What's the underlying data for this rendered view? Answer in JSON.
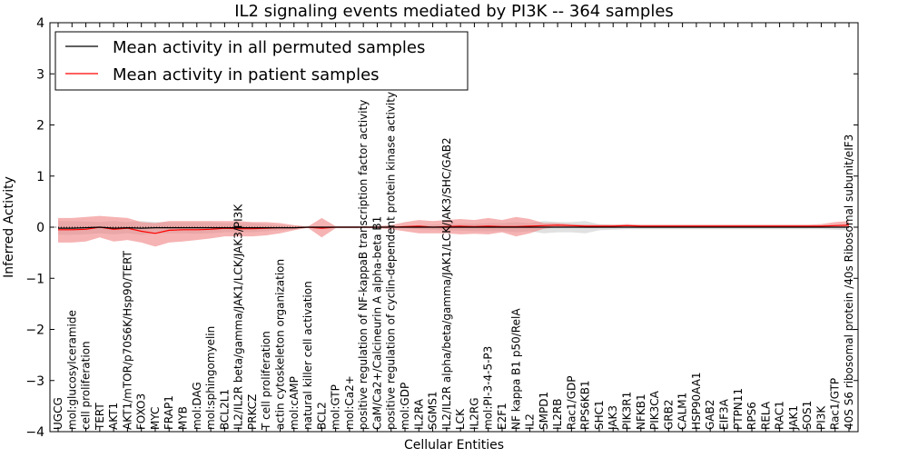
{
  "chart_data": {
    "type": "line",
    "title": "IL2 signaling events mediated by PI3K -- 364 samples",
    "xlabel": "Cellular Entities",
    "ylabel": "Inferred Activity",
    "ylim": [
      -4,
      4
    ],
    "yticks": [
      -4,
      -3,
      -2,
      -1,
      0,
      1,
      2,
      3,
      4
    ],
    "ytick_labels": [
      "−4",
      "−3",
      "−2",
      "−1",
      "0",
      "1",
      "2",
      "3",
      "4"
    ],
    "legend_position": "top-left",
    "categories": [
      "UGCG",
      "mol:glucosylceramide",
      "cell proliferation",
      "TERT",
      "AKT1",
      "AKT1/mTOR/p70S6K/Hsp90/TERT",
      "FOXO3",
      "MYC",
      "FRAP1",
      "MYB",
      "mol:DAG",
      "mol:sphingomyelin",
      "BCL2L1",
      "IL2/IL2R beta/gamma/JAK1/LCK/JAK3/PI3K",
      "PRKCZ",
      "T cell proliferation",
      "actin cytoskeleton organization",
      "mol:cAMP",
      "natural killer cell activation",
      "BCL2",
      "mol:GTP",
      "mol:Ca2+",
      "positive regulation of NF-kappaB transcription factor activity",
      "CaM/Ca2+/Calcineurin A alpha-beta B1",
      "positive regulation of cyclin-dependent protein kinase activity",
      "mol:GDP",
      "IL2RA",
      "SGMS1",
      "IL2/IL2R alpha/beta/gamma/JAK1/LCK/JAK3/SHC/GAB2",
      "LCK",
      "IL2RG",
      "mol:PI-3-4-5-P3",
      "E2F1",
      "NF kappa B1 p50/RelA",
      "IL2",
      "SMPD1",
      "IL2RB",
      "Rac1/GDP",
      "RPS6KB1",
      "SHC1",
      "JAK3",
      "PIK3R1",
      "NFKB1",
      "PIK3CA",
      "GRB2",
      "CALM1",
      "HSP90AA1",
      "GAB2",
      "EIF3A",
      "PTPN11",
      "RPS6",
      "RELA",
      "RAC1",
      "JAK1",
      "SOS1",
      "PI3K",
      "Rac1/GTP",
      "40S S6 ribosomal protein /40s Ribosomal subunit/eIF3"
    ],
    "series": [
      {
        "name": "Mean activity in all permuted samples",
        "color": "#000000",
        "values": [
          -0.02,
          -0.02,
          -0.01,
          0.0,
          -0.02,
          -0.01,
          -0.02,
          -0.01,
          -0.01,
          -0.01,
          -0.01,
          -0.01,
          -0.01,
          -0.01,
          -0.01,
          -0.01,
          -0.01,
          -0.01,
          0.0,
          0.0,
          0.0,
          0.0,
          0.0,
          0.0,
          0.0,
          0.0,
          0.0,
          0.0,
          0.0,
          0.0,
          0.0,
          0.0,
          0.0,
          0.0,
          0.0,
          0.0,
          0.0,
          0.0,
          0.0,
          0.0,
          0.0,
          0.0,
          0.0,
          0.0,
          0.0,
          0.0,
          0.0,
          0.0,
          0.0,
          0.0,
          0.0,
          0.0,
          0.0,
          0.0,
          0.0,
          0.0,
          0.0,
          0.0
        ],
        "band_lower": [
          -0.15,
          -0.15,
          -0.14,
          -0.12,
          -0.14,
          -0.12,
          -0.15,
          -0.13,
          -0.12,
          -0.12,
          -0.13,
          -0.12,
          -0.1,
          -0.1,
          -0.1,
          -0.08,
          -0.06,
          -0.04,
          -0.01,
          -0.02,
          -0.01,
          -0.01,
          -0.01,
          -0.01,
          -0.01,
          -0.02,
          -0.04,
          -0.05,
          -0.06,
          -0.07,
          -0.08,
          -0.08,
          -0.08,
          -0.1,
          -0.08,
          -0.12,
          -0.1,
          -0.1,
          -0.12,
          -0.06,
          -0.05,
          -0.04,
          -0.04,
          -0.04,
          -0.04,
          -0.04,
          -0.04,
          -0.04,
          -0.04,
          -0.04,
          -0.04,
          -0.04,
          -0.04,
          -0.04,
          -0.04,
          -0.04,
          -0.05,
          -0.06
        ],
        "band_upper": [
          0.12,
          0.12,
          0.11,
          0.1,
          0.12,
          0.1,
          0.12,
          0.1,
          0.1,
          0.1,
          0.1,
          0.1,
          0.08,
          0.08,
          0.08,
          0.06,
          0.04,
          0.03,
          0.01,
          0.02,
          0.01,
          0.01,
          0.01,
          0.01,
          0.01,
          0.02,
          0.04,
          0.05,
          0.06,
          0.07,
          0.07,
          0.08,
          0.08,
          0.1,
          0.08,
          0.12,
          0.1,
          0.1,
          0.12,
          0.06,
          0.05,
          0.04,
          0.04,
          0.04,
          0.04,
          0.04,
          0.04,
          0.04,
          0.04,
          0.04,
          0.04,
          0.04,
          0.04,
          0.04,
          0.04,
          0.04,
          0.05,
          0.06
        ]
      },
      {
        "name": "Mean activity in patient samples",
        "color": "#ff0000",
        "band_color": "#f08080",
        "values": [
          -0.05,
          -0.05,
          -0.04,
          0.0,
          -0.04,
          -0.02,
          -0.08,
          -0.12,
          -0.06,
          -0.05,
          -0.05,
          -0.04,
          -0.02,
          -0.03,
          -0.03,
          -0.02,
          -0.01,
          -0.01,
          0.0,
          -0.02,
          0.0,
          0.0,
          0.0,
          0.0,
          0.0,
          0.01,
          0.02,
          0.0,
          0.01,
          0.02,
          0.01,
          0.02,
          0.01,
          0.01,
          0.02,
          0.03,
          0.04,
          0.03,
          0.02,
          0.02,
          0.02,
          0.03,
          0.02,
          0.02,
          0.02,
          0.02,
          0.02,
          0.02,
          0.02,
          0.02,
          0.02,
          0.02,
          0.02,
          0.02,
          0.02,
          0.02,
          0.03,
          0.04
        ],
        "band_lower": [
          -0.3,
          -0.3,
          -0.28,
          -0.2,
          -0.28,
          -0.25,
          -0.3,
          -0.38,
          -0.3,
          -0.28,
          -0.25,
          -0.22,
          -0.18,
          -0.18,
          -0.18,
          -0.16,
          -0.12,
          -0.06,
          -0.01,
          -0.2,
          -0.02,
          -0.02,
          -0.02,
          -0.02,
          -0.04,
          -0.08,
          -0.12,
          -0.12,
          -0.12,
          -0.14,
          -0.13,
          -0.14,
          -0.1,
          -0.18,
          -0.12,
          -0.03,
          0.0,
          0.0,
          -0.01,
          -0.01,
          0.0,
          0.0,
          0.0,
          0.0,
          0.0,
          0.0,
          0.0,
          0.0,
          0.0,
          0.0,
          0.0,
          0.0,
          0.0,
          0.0,
          0.0,
          0.0,
          0.0,
          -0.01
        ],
        "band_upper": [
          0.18,
          0.18,
          0.2,
          0.22,
          0.2,
          0.18,
          0.1,
          0.08,
          0.12,
          0.12,
          0.12,
          0.12,
          0.12,
          0.12,
          0.1,
          0.1,
          0.08,
          0.04,
          0.01,
          0.18,
          0.02,
          0.02,
          0.02,
          0.02,
          0.04,
          0.1,
          0.14,
          0.12,
          0.14,
          0.16,
          0.14,
          0.18,
          0.14,
          0.2,
          0.16,
          0.08,
          0.08,
          0.06,
          0.05,
          0.05,
          0.05,
          0.06,
          0.05,
          0.05,
          0.05,
          0.05,
          0.05,
          0.05,
          0.05,
          0.05,
          0.05,
          0.05,
          0.05,
          0.05,
          0.05,
          0.06,
          0.1,
          0.12
        ]
      }
    ]
  }
}
